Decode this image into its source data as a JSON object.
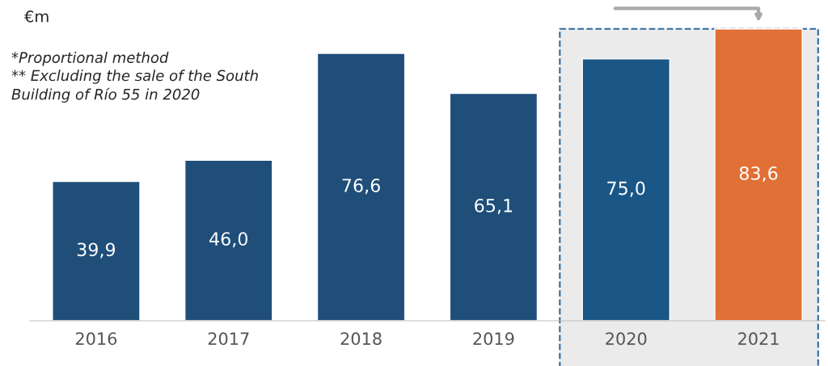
{
  "chart_data": {
    "type": "bar",
    "categories": [
      "2016",
      "2017",
      "2018",
      "2019",
      "2020",
      "2021"
    ],
    "values": [
      39.9,
      46.0,
      76.6,
      65.1,
      75.0,
      83.6
    ],
    "colors": [
      "#1f4e79",
      "#1f4e79",
      "#1f4e79",
      "#1f4e79",
      "#1a5686",
      "#e07035"
    ],
    "value_labels": [
      "39,9",
      "46,0",
      "76,6",
      "65,1",
      "75,0",
      "83,6"
    ],
    "annotations": [
      "€m",
      "*Proportional method\n** Excluding the sale of the South\nBuilding of Río 55 in 2020"
    ],
    "bands": [
      {
        "axis": "x",
        "from": "2020",
        "to": "2021",
        "color": "#ebebeb"
      }
    ],
    "grid": false,
    "legend": false
  }
}
